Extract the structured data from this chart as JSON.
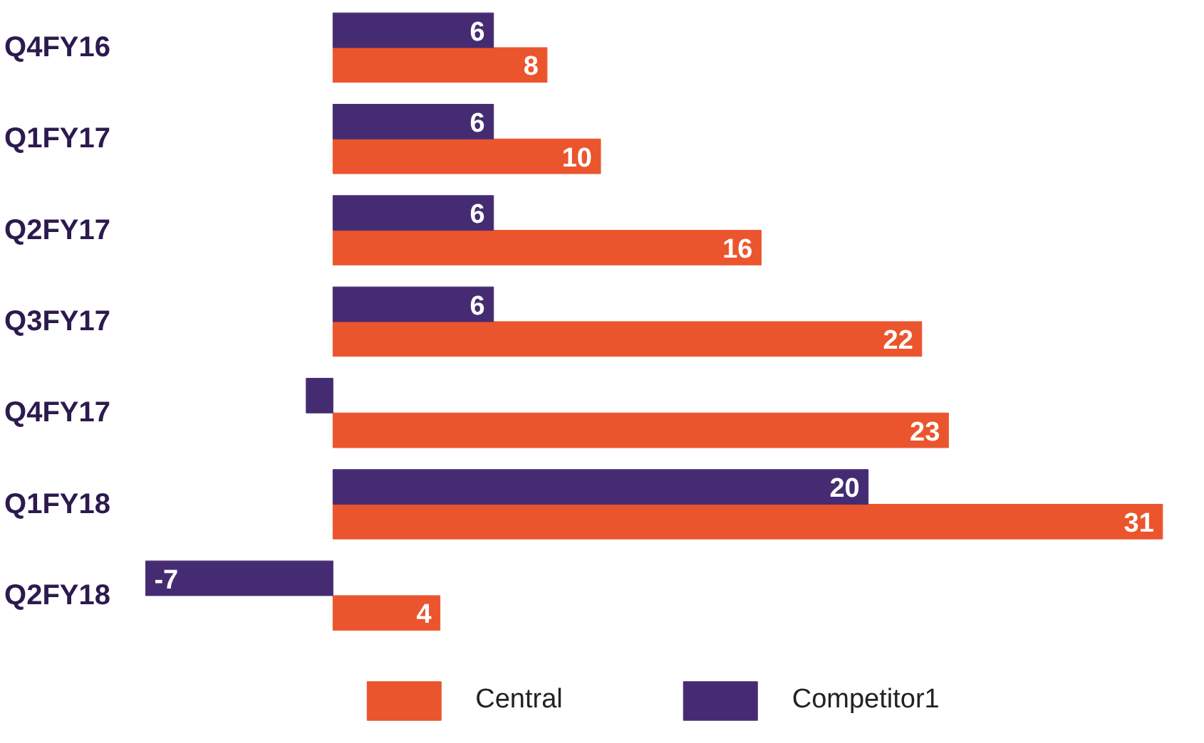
{
  "chart_data": {
    "type": "bar",
    "orientation": "horizontal",
    "categories": [
      "Q4FY16",
      "Q1FY17",
      "Q2FY17",
      "Q3FY17",
      "Q4FY17",
      "Q1FY18",
      "Q2FY18"
    ],
    "series": [
      {
        "name": "Central",
        "color": "#eb552d",
        "values": [
          8,
          10,
          16,
          22,
          23,
          31,
          4
        ],
        "value_labels": [
          "8",
          "10",
          "16",
          "22",
          "23",
          "31",
          "4"
        ]
      },
      {
        "name": "Competitor1",
        "color": "#452c72",
        "values": [
          6,
          6,
          6,
          6,
          -1,
          20,
          -7
        ],
        "value_labels": [
          "6",
          "6",
          "6",
          "6",
          null,
          "20",
          "-7"
        ]
      }
    ],
    "legend": "bottom",
    "grid": false,
    "tick_labels": "y"
  }
}
